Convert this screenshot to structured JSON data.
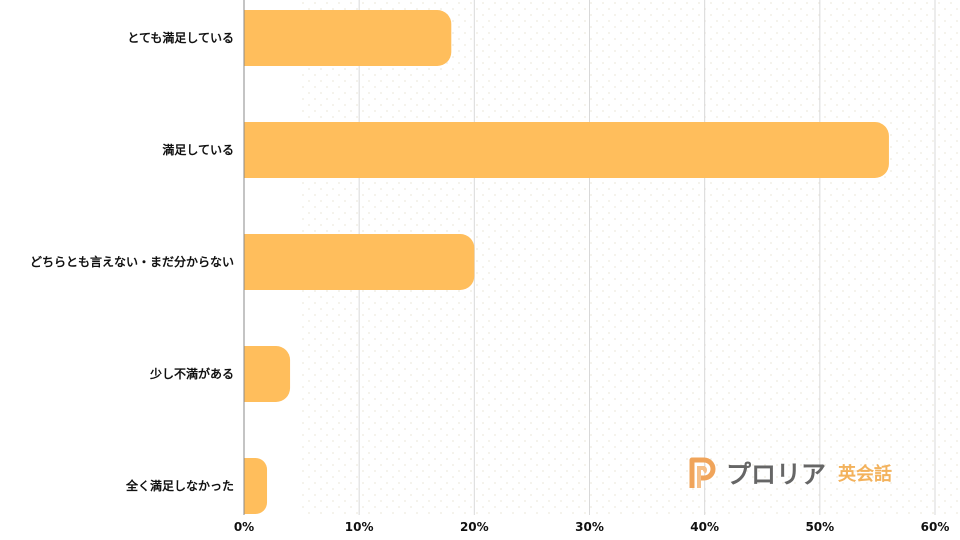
{
  "chart_data": {
    "type": "bar",
    "orientation": "horizontal",
    "categories": [
      "とても満足している",
      "満足している",
      "どちらとも言えない・まだ分からない",
      "少し不満がある",
      "全く満足しなかった"
    ],
    "values": [
      18,
      56,
      20,
      4,
      2
    ],
    "xlim": [
      0,
      60
    ],
    "x_ticks": [
      "0%",
      "10%",
      "20%",
      "30%",
      "40%",
      "50%",
      "60%"
    ],
    "title": "",
    "xlabel": "",
    "ylabel": "",
    "grid": "vertical",
    "legend": "none",
    "colors": {
      "bar": "#ffbe5c",
      "grid": "#d9d9d9",
      "axis": "#888888",
      "text": "#111111"
    }
  },
  "logo": {
    "brand": "プロリア",
    "sub": "英会話",
    "icon": "proria-p-icon",
    "colors": {
      "brand": "#666666",
      "sub": "#f3b25c",
      "icon": "#f0a45a"
    }
  }
}
